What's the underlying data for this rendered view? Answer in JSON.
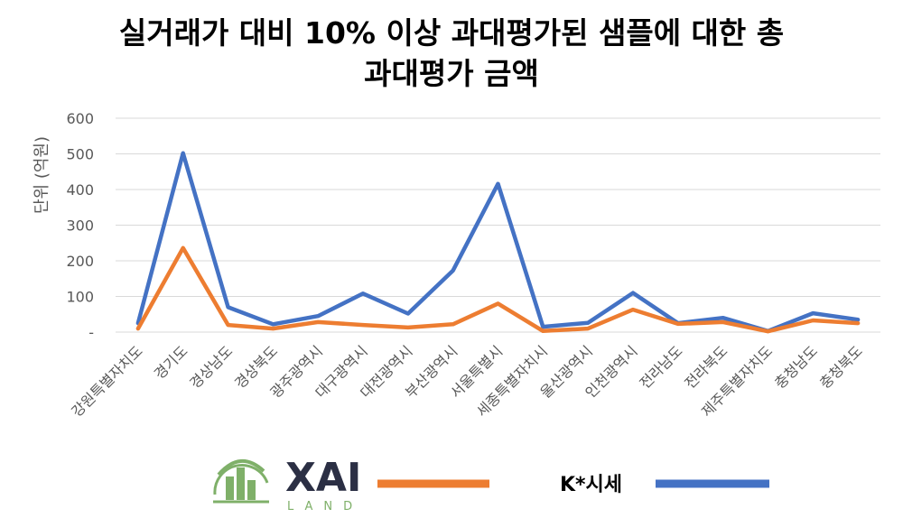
{
  "colors": {
    "xai_series": "#ED7D31",
    "k_series": "#4472C4",
    "grid": "#D9D9D9",
    "logo_green": "#7FB069",
    "logo_dark": "#2B2F44"
  },
  "legend": {
    "logo_text": "XAI",
    "logo_sub": "LAND",
    "k_label": "K*시세"
  },
  "chart_data": {
    "type": "line",
    "title_lines": [
      "실거래가 대비 10% 이상 과대평가된 샘플에 대한 총",
      "과대평가 금액"
    ],
    "ylabel": "단위 (억원)",
    "ylim": [
      0,
      600
    ],
    "yticks": [
      "-",
      "100",
      "200",
      "300",
      "400",
      "500",
      "600"
    ],
    "grid": true,
    "legend_position": "bottom",
    "categories": [
      "강원특별자치도",
      "경기도",
      "경상남도",
      "경상북도",
      "광주광역시",
      "대구광역시",
      "대전광역시",
      "부산광역시",
      "서울특별시",
      "세종특별자치시",
      "울산광역시",
      "인천광역시",
      "전라남도",
      "전라북도",
      "제주특별자치도",
      "충청남도",
      "충청북도"
    ],
    "series": [
      {
        "name": "XAI LAND",
        "values": [
          10,
          236,
          20,
          10,
          28,
          20,
          13,
          22,
          80,
          3,
          10,
          63,
          23,
          28,
          2,
          33,
          25
        ]
      },
      {
        "name": "K*시세",
        "values": [
          25,
          502,
          70,
          22,
          45,
          108,
          52,
          173,
          416,
          15,
          26,
          110,
          25,
          40,
          3,
          53,
          35
        ]
      }
    ]
  }
}
